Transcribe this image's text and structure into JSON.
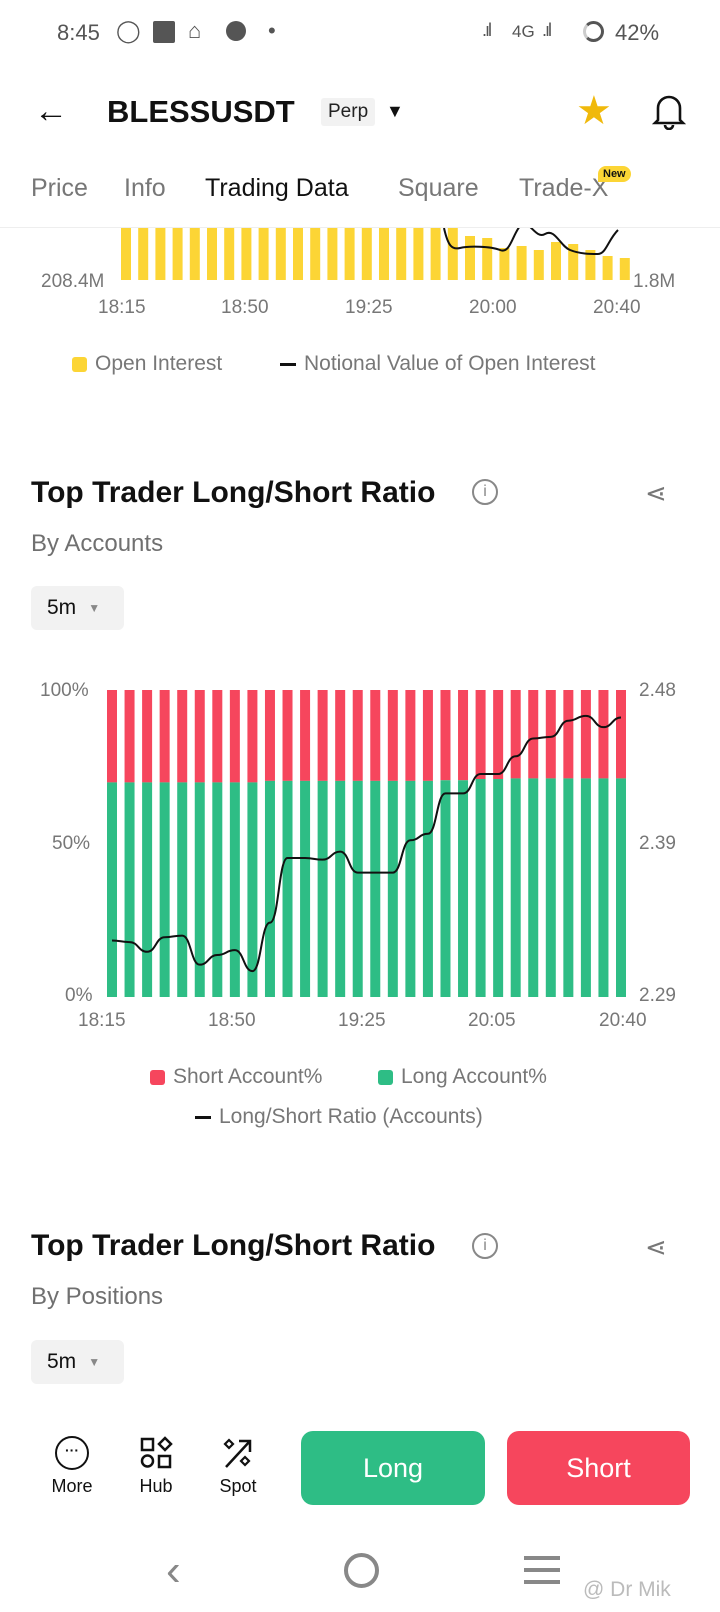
{
  "status_bar": {
    "time": "8:45",
    "network": "4G",
    "battery": "42%"
  },
  "header": {
    "title": "BLESSUSDT",
    "badge": "Perp",
    "icons": [
      "back-arrow-icon",
      "star-icon",
      "bell-icon"
    ],
    "star_color": "#f0b90b"
  },
  "tabs": [
    {
      "label": "Price"
    },
    {
      "label": "Info"
    },
    {
      "label": "Trading Data",
      "active": true
    },
    {
      "label": "Square"
    },
    {
      "label": "Trade-X",
      "badge": "New"
    }
  ],
  "oi_chart": {
    "left_tick": "208.4M",
    "right_tick": "1.8M",
    "x_ticks": [
      "18:15",
      "18:50",
      "19:25",
      "20:00",
      "20:40"
    ],
    "legend": [
      "Open Interest",
      "Notional Value of Open Interest"
    ],
    "bar_color": "#fcd535"
  },
  "section1": {
    "title": "Top Trader Long/Short Ratio",
    "subtitle": "By Accounts",
    "interval": "5m"
  },
  "chart_data": {
    "type": "bar",
    "stacked": true,
    "x_ticks": [
      "18:15",
      "18:50",
      "19:25",
      "20:05",
      "20:40"
    ],
    "y_left_ticks": [
      "100%",
      "50%",
      "0%"
    ],
    "y_right_ticks": [
      "2.48",
      "2.39",
      "2.29"
    ],
    "y_left_range": [
      0,
      100
    ],
    "y_right_range": [
      2.29,
      2.48
    ],
    "colors": {
      "short": "#f6465d",
      "long": "#2ebd85",
      "ratio": "#111111"
    },
    "legend": [
      "Short Account%",
      "Long Account%",
      "Long/Short Ratio (Accounts)"
    ],
    "long_pct": [
      69.9,
      69.9,
      69.9,
      69.9,
      69.9,
      69.9,
      69.9,
      69.9,
      69.9,
      70.4,
      70.4,
      70.4,
      70.4,
      70.4,
      70.4,
      70.4,
      70.4,
      70.4,
      70.4,
      70.6,
      70.6,
      71.0,
      71.0,
      71.2,
      71.2,
      71.2,
      71.2,
      71.2,
      71.2,
      71.2
    ],
    "ratio": [
      2.325,
      2.324,
      2.318,
      2.327,
      2.328,
      2.31,
      2.316,
      2.319,
      2.306,
      2.336,
      2.376,
      2.376,
      2.375,
      2.38,
      2.367,
      2.367,
      2.367,
      2.387,
      2.391,
      2.416,
      2.416,
      2.428,
      2.428,
      2.439,
      2.45,
      2.451,
      2.461,
      2.464,
      2.457,
      2.463
    ]
  },
  "section2": {
    "title": "Top Trader Long/Short Ratio",
    "subtitle": "By Positions",
    "interval": "5m"
  },
  "bottom": {
    "tools": [
      {
        "label": "More"
      },
      {
        "label": "Hub"
      },
      {
        "label": "Spot"
      }
    ],
    "long": "Long",
    "short": "Short"
  },
  "watermark": "@ Dr Mik"
}
